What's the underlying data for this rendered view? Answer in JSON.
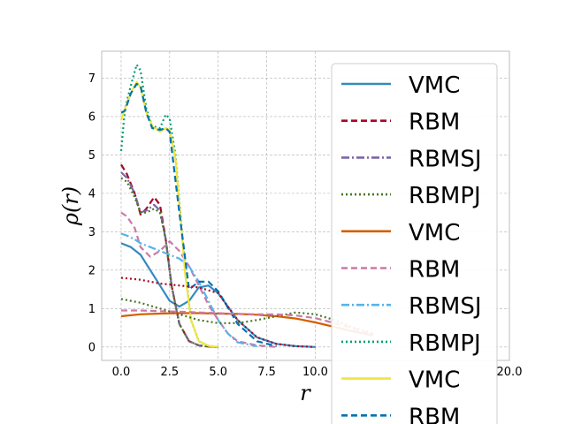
{
  "chart_data": {
    "type": "line",
    "xlabel": "r",
    "ylabel": "ρ(r)",
    "xlim": [
      -1,
      20
    ],
    "ylim": [
      -0.35,
      7.7
    ],
    "x_ticks": [
      "0.0",
      "2.5",
      "5.0",
      "7.5",
      "10.0",
      "20.0"
    ],
    "y_ticks": [
      "0",
      "1",
      "2",
      "3",
      "4",
      "5",
      "6",
      "7"
    ],
    "grid": true,
    "legend_position": "right (overflows axes)",
    "colors": {
      "grid": "#b0b0b0",
      "axes": "#bcbcbc"
    },
    "series": [
      {
        "name": "VMC",
        "color": "#348abd",
        "dash": "solid",
        "x": [
          0,
          0.5,
          1.0,
          1.5,
          2.0,
          2.5,
          3.0,
          3.5,
          4.0,
          4.5,
          5.0,
          6.0,
          7.0,
          8.0,
          9.0,
          10.0
        ],
        "y": [
          2.7,
          2.6,
          2.4,
          2.0,
          1.6,
          1.2,
          1.05,
          1.2,
          1.55,
          1.6,
          1.4,
          0.7,
          0.25,
          0.08,
          0.02,
          0.0
        ]
      },
      {
        "name": "RBM",
        "color": "#a60628",
        "dash": "dash",
        "x": [
          0,
          0.3,
          0.7,
          1.0,
          1.3,
          1.7,
          2.0,
          2.3,
          2.6,
          3.0,
          3.5,
          4.0,
          4.5,
          5.0
        ],
        "y": [
          4.75,
          4.5,
          4.0,
          3.45,
          3.6,
          3.9,
          3.7,
          2.8,
          1.6,
          0.6,
          0.15,
          0.04,
          0.01,
          0.0
        ]
      },
      {
        "name": "RBMSJ",
        "color": "#7a68a6",
        "dash": "dashdot",
        "x": [
          0,
          0.3,
          0.7,
          1.0,
          1.3,
          1.7,
          2.0,
          2.3,
          2.6,
          3.0,
          3.5,
          4.0,
          4.5,
          5.0
        ],
        "y": [
          4.55,
          4.4,
          4.0,
          3.5,
          3.55,
          3.7,
          3.55,
          2.8,
          1.6,
          0.6,
          0.15,
          0.04,
          0.01,
          0.0
        ]
      },
      {
        "name": "RBMPJ",
        "color": "#467821",
        "dash": "dot",
        "x": [
          0,
          0.3,
          0.7,
          1.0,
          1.3,
          1.7,
          2.0,
          2.3,
          2.6,
          3.0,
          3.5,
          4.0,
          4.5,
          5.0
        ],
        "y": [
          4.4,
          4.3,
          3.9,
          3.5,
          3.5,
          3.6,
          3.5,
          2.8,
          1.6,
          0.6,
          0.15,
          0.04,
          0.01,
          0.0
        ]
      },
      {
        "name": "VMC",
        "color": "#d55e00",
        "dash": "solid",
        "x": [
          0,
          1,
          2,
          3,
          4,
          5,
          6,
          7,
          8,
          9,
          10,
          11,
          12,
          13
        ],
        "y": [
          0.8,
          0.85,
          0.87,
          0.88,
          0.88,
          0.87,
          0.86,
          0.84,
          0.8,
          0.74,
          0.64,
          0.52,
          0.4,
          0.3
        ]
      },
      {
        "name": "RBM",
        "color": "#cc79a7",
        "dash": "dash",
        "x": [
          0,
          0.3,
          0.7,
          1.0,
          1.5,
          2.0,
          2.5,
          3.0,
          3.5,
          4.0,
          4.5,
          5.0,
          5.5,
          6.0,
          7.0,
          8.0
        ],
        "y": [
          3.5,
          3.4,
          3.1,
          2.6,
          2.35,
          2.5,
          2.75,
          2.5,
          2.1,
          1.6,
          1.1,
          0.7,
          0.35,
          0.15,
          0.04,
          0.0
        ]
      },
      {
        "name": "RBMSJ",
        "color": "#56b4e9",
        "dash": "dashdot",
        "x": [
          0,
          0.3,
          0.7,
          1.0,
          1.5,
          2.0,
          2.5,
          3.0,
          3.5,
          4.0,
          4.5,
          5.0,
          5.5,
          6.0,
          7.0
        ],
        "y": [
          2.95,
          2.9,
          2.8,
          2.7,
          2.6,
          2.5,
          2.4,
          2.3,
          2.1,
          1.7,
          1.2,
          0.7,
          0.35,
          0.12,
          0.02
        ]
      },
      {
        "name": "RBMPJ",
        "color": "#009e73",
        "dash": "dot",
        "x": [
          0,
          0.2,
          0.5,
          0.8,
          1.0,
          1.3,
          1.6,
          2.0,
          2.3,
          2.5,
          2.8,
          3.0,
          3.3,
          3.6,
          4.0,
          4.5,
          5.0
        ],
        "y": [
          5.1,
          6.2,
          6.8,
          7.35,
          7.2,
          6.2,
          5.75,
          5.7,
          6.05,
          5.95,
          5.0,
          3.8,
          2.0,
          0.7,
          0.15,
          0.03,
          0.0
        ]
      },
      {
        "name": "VMC",
        "color": "#f0e442",
        "dash": "solid",
        "x": [
          0,
          0.2,
          0.5,
          0.8,
          1.0,
          1.3,
          1.6,
          2.0,
          2.3,
          2.5,
          2.8,
          3.0,
          3.3,
          3.6,
          4.0,
          4.5,
          5.0
        ],
        "y": [
          5.9,
          6.2,
          6.6,
          6.9,
          6.75,
          6.1,
          5.75,
          5.6,
          5.7,
          5.65,
          4.9,
          3.7,
          1.9,
          0.7,
          0.15,
          0.03,
          0.0
        ]
      },
      {
        "name": "RBM",
        "color": "#0072b2",
        "dash": "dash",
        "x": [
          0,
          0.2,
          0.5,
          0.8,
          1.0,
          1.3,
          1.6,
          2.0,
          2.3,
          2.5,
          3.0,
          3.5,
          4.0,
          4.5,
          5.0,
          6.0,
          7.0,
          8.0
        ],
        "y": [
          6.1,
          6.15,
          6.6,
          6.85,
          6.8,
          6.1,
          5.7,
          5.65,
          5.7,
          5.6,
          3.5,
          1.5,
          1.7,
          1.7,
          1.45,
          0.6,
          0.15,
          0.02
        ]
      },
      {
        "name": "",
        "color": "#a60628",
        "dash": "dot",
        "x": [
          0,
          1,
          2,
          3,
          4,
          5,
          6,
          7,
          8,
          9,
          10
        ],
        "y": [
          1.8,
          1.75,
          1.65,
          1.6,
          1.55,
          1.4,
          0.7,
          0.25,
          0.08,
          0.02,
          0.0
        ]
      },
      {
        "name": "",
        "color": "#467821",
        "dash": "dot",
        "x": [
          0,
          1,
          2,
          3,
          4,
          5,
          6,
          7,
          8,
          9,
          10,
          11,
          12,
          13
        ],
        "y": [
          1.25,
          1.15,
          1.0,
          0.85,
          0.7,
          0.62,
          0.62,
          0.7,
          0.8,
          0.9,
          0.85,
          0.7,
          0.5,
          0.35
        ]
      },
      {
        "name": "",
        "color": "#cc79a7",
        "dash": "dash",
        "x": [
          0,
          1,
          2,
          3,
          4,
          5,
          6,
          7,
          8,
          9,
          10,
          11,
          12,
          13
        ],
        "y": [
          0.95,
          0.95,
          0.93,
          0.92,
          0.9,
          0.88,
          0.86,
          0.85,
          0.85,
          0.82,
          0.75,
          0.62,
          0.47,
          0.33
        ]
      }
    ],
    "legend": [
      {
        "label": "VMC",
        "color": "#348abd",
        "dash": "solid"
      },
      {
        "label": "RBM",
        "color": "#a60628",
        "dash": "dash"
      },
      {
        "label": "RBMSJ",
        "color": "#7a68a6",
        "dash": "dashdot"
      },
      {
        "label": "RBMPJ",
        "color": "#467821",
        "dash": "dot"
      },
      {
        "label": "VMC",
        "color": "#d55e00",
        "dash": "solid"
      },
      {
        "label": "RBM",
        "color": "#cc79a7",
        "dash": "dash"
      },
      {
        "label": "RBMSJ",
        "color": "#56b4e9",
        "dash": "dashdot"
      },
      {
        "label": "RBMPJ",
        "color": "#009e73",
        "dash": "dot"
      },
      {
        "label": "VMC",
        "color": "#f0e442",
        "dash": "solid"
      },
      {
        "label": "RBM",
        "color": "#0072b2",
        "dash": "dash"
      }
    ]
  }
}
